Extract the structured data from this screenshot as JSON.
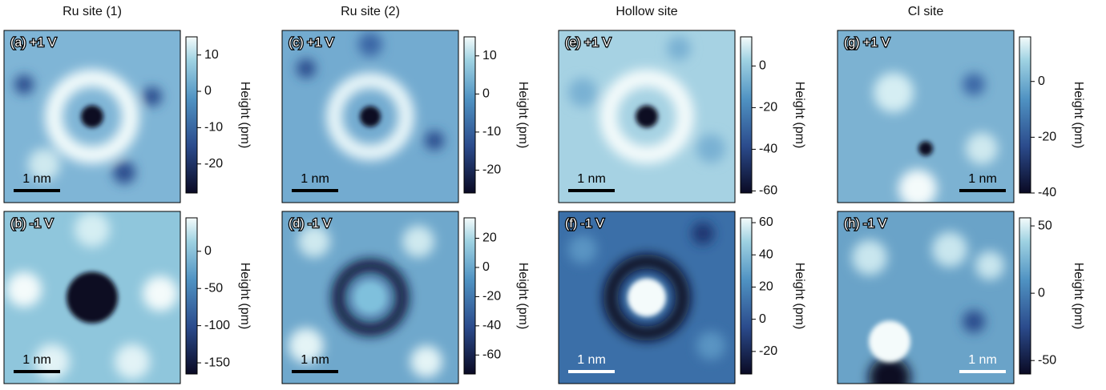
{
  "columns": [
    {
      "title": "Ru site (1)",
      "panels": [
        {
          "label": "(a) +1 V",
          "scale_bar": "1 nm",
          "colorbar": {
            "label": "Height (pm)",
            "lim": [
              -28,
              15
            ],
            "ticks": [
              10,
              0,
              -10,
              -20
            ]
          }
        },
        {
          "label": "(b) -1 V",
          "scale_bar": "1 nm",
          "colorbar": {
            "label": "Height (pm)",
            "lim": [
              -165,
              45
            ],
            "ticks": [
              0,
              -50,
              -100,
              -150
            ]
          }
        }
      ]
    },
    {
      "title": "Ru site (2)",
      "panels": [
        {
          "label": "(c) +1 V",
          "scale_bar": "1 nm",
          "colorbar": {
            "label": "Height (pm)",
            "lim": [
              -26,
              15
            ],
            "ticks": [
              10,
              0,
              -10,
              -20
            ]
          }
        },
        {
          "label": "(d) -1 V",
          "scale_bar": "1 nm",
          "colorbar": {
            "label": "Height (pm)",
            "lim": [
              -73,
              34
            ],
            "ticks": [
              20,
              0,
              -20,
              -40,
              -60
            ]
          }
        }
      ]
    },
    {
      "title": "Hollow site",
      "panels": [
        {
          "label": "(e) +1 V",
          "scale_bar": "1 nm",
          "colorbar": {
            "label": "Height (pm)",
            "lim": [
              -61,
              14
            ],
            "ticks": [
              0,
              -20,
              -40,
              -60
            ]
          }
        },
        {
          "label": "(f) -1 V",
          "scale_bar": "1 nm",
          "colorbar": {
            "label": "Height (pm)",
            "lim": [
              -34,
              63
            ],
            "ticks": [
              60,
              40,
              20,
              0,
              -20
            ]
          }
        }
      ]
    },
    {
      "title": "Cl site",
      "panels": [
        {
          "label": "(g) +1 V",
          "scale_bar": "1 nm",
          "colorbar": {
            "label": "Height (pm)",
            "lim": [
              -40,
              16
            ],
            "ticks": [
              0,
              -20,
              -40
            ]
          }
        },
        {
          "label": "(h) -1 V",
          "scale_bar": "1 nm",
          "colorbar": {
            "label": "Height (pm)",
            "lim": [
              -60,
              56
            ],
            "ticks": [
              50,
              0,
              -50
            ]
          }
        }
      ]
    }
  ]
}
